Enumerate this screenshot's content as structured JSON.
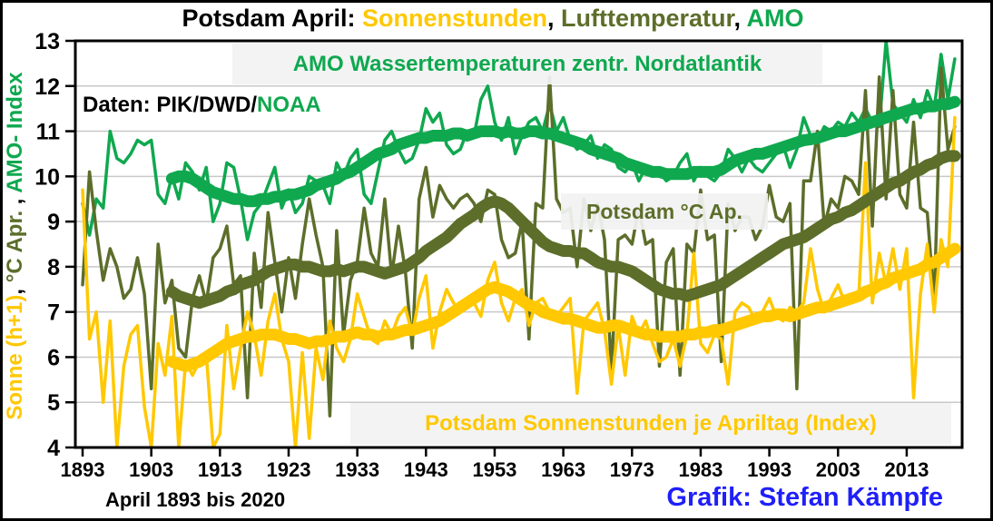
{
  "title": {
    "prefix": "Potsdam April: ",
    "sun": "Sonnenstunden",
    "sep1": ", ",
    "temp": "Lufttemperatur",
    "sep2": ", ",
    "amo": "AMO"
  },
  "colors": {
    "sun": "#FFC800",
    "temp": "#5C6E2A",
    "amo": "#0FA84F",
    "blue": "#1F1FFA",
    "grid": "#C8C8C8",
    "box_bg": "#F2F2F2",
    "axis": "#000000"
  },
  "annotations": {
    "amo_box": "AMO Wassertemperaturen  zentr. Nordatlantik",
    "daten_prefix": "Daten: PIK/DWD/",
    "daten_noaa": "NOAA",
    "temp_box": "Potsdam °C Ap.",
    "sun_box": "Potsdam Sonnenstunden je Apriltag (Index)"
  },
  "y_axis_label": {
    "sun_part": "Sonne (h+1)",
    "sep1": ", ",
    "temp_part": "°C Apr.",
    "sep2": " , ",
    "amo_part": "AMO- Index"
  },
  "footer": {
    "left": "April 1893 bis 2020",
    "right": "Grafik: Stefan Kämpfe"
  },
  "chart_data": {
    "type": "line",
    "title": "Potsdam April: Sonnenstunden, Lufttemperatur, AMO",
    "x_label": "April 1893 bis 2020",
    "x_start": 1893,
    "x_end": 2020,
    "ylim": [
      4,
      13
    ],
    "y_ticks": [
      4,
      5,
      6,
      7,
      8,
      9,
      10,
      11,
      12,
      13
    ],
    "x_ticks": [
      1893,
      1903,
      1913,
      1923,
      1933,
      1943,
      1953,
      1963,
      1973,
      1983,
      1993,
      2003,
      2013
    ],
    "grid": "horizontal",
    "legend_position": "labels-inside-plot",
    "series": [
      {
        "id": "amo_annual",
        "name": "AMO Wassertemperaturen zentr. Nordatlantik (Index, jährlich)",
        "color": "#0FA84F",
        "stroke_width": 3.5,
        "start_year": 1893,
        "values": [
          9.4,
          8.7,
          9.5,
          9.3,
          11.0,
          10.4,
          10.3,
          10.5,
          10.8,
          10.7,
          10.8,
          9.6,
          9.4,
          10.0,
          9.5,
          10.3,
          10.1,
          9.7,
          10.2,
          9.0,
          9.4,
          10.3,
          10.2,
          9.5,
          8.6,
          9.2,
          9.4,
          9.8,
          10.2,
          9.3,
          9.7,
          9.2,
          9.4,
          10.0,
          9.9,
          9.8,
          9.4,
          10.3,
          10.0,
          10.4,
          10.6,
          9.6,
          9.4,
          10.1,
          10.8,
          11.0,
          10.6,
          10.3,
          10.4,
          10.8,
          11.5,
          11.2,
          11.4,
          10.7,
          10.5,
          10.6,
          11.0,
          10.9,
          11.7,
          12.0,
          11.2,
          10.8,
          11.3,
          10.5,
          10.9,
          11.2,
          11.3,
          11.0,
          11.6,
          11.0,
          11.3,
          10.8,
          10.6,
          10.7,
          10.9,
          10.4,
          10.7,
          10.6,
          10.2,
          10.1,
          10.3,
          9.9,
          10.2,
          10.0,
          10.1,
          9.9,
          10.0,
          10.3,
          10.5,
          9.9,
          10.2,
          10.0,
          9.9,
          10.1,
          10.6,
          10.4,
          10.1,
          10.4,
          10.2,
          10.1,
          10.3,
          10.5,
          10.7,
          10.2,
          10.6,
          11.3,
          10.9,
          10.8,
          11.1,
          11.0,
          11.2,
          11.1,
          11.4,
          11.2,
          11.5,
          11.2,
          11.1,
          13.0,
          11.6,
          11.4,
          11.2,
          11.7,
          11.3,
          11.9,
          11.5,
          12.7,
          11.7,
          12.6
        ]
      },
      {
        "id": "temp_annual",
        "name": "Lufttemperatur Potsdam April °C (jährlich)",
        "color": "#5C6E2A",
        "stroke_width": 3.5,
        "start_year": 1893,
        "values": [
          7.6,
          10.1,
          8.8,
          7.7,
          8.4,
          8.0,
          7.3,
          7.5,
          8.2,
          7.4,
          5.3,
          8.5,
          7.2,
          7.7,
          6.2,
          6.0,
          7.3,
          7.8,
          7.2,
          8.2,
          8.4,
          8.9,
          7.6,
          7.8,
          5.1,
          8.3,
          7.1,
          9.2,
          8.1,
          7.0,
          8.2,
          7.3,
          8.5,
          9.5,
          8.7,
          8.0,
          4.7,
          8.8,
          6.5,
          7.7,
          8.1,
          9.3,
          8.3,
          8.0,
          9.5,
          7.8,
          8.9,
          7.9,
          6.2,
          9.5,
          10.2,
          9.1,
          9.8,
          9.5,
          9.3,
          9.5,
          9.6,
          9.4,
          9.0,
          9.7,
          9.6,
          8.6,
          8.2,
          8.3,
          9.0,
          6.4,
          9.4,
          9.3,
          12.2,
          9.5,
          9.2,
          9.3,
          8.0,
          9.5,
          8.8,
          9.4,
          8.6,
          5.7,
          8.6,
          8.7,
          8.5,
          9.3,
          8.5,
          8.6,
          5.8,
          8.1,
          8.4,
          5.6,
          8.5,
          8.3,
          9.7,
          8.6,
          8.7,
          5.9,
          9.4,
          8.8,
          9.1,
          9.1,
          8.6,
          8.9,
          9.8,
          9.1,
          9.0,
          9.4,
          5.3,
          9.9,
          9.9,
          11.0,
          8.9,
          9.5,
          9.3,
          10.0,
          9.9,
          9.6,
          11.9,
          8.9,
          12.2,
          9.5,
          11.9,
          9.6,
          9.3,
          11.2,
          9.3,
          9.2,
          7.2,
          12.4,
          10.6,
          11.1
        ]
      },
      {
        "id": "sun_annual",
        "name": "Potsdam Sonnenstunden je Apriltag, Index h+1 (jährlich)",
        "color": "#FFC800",
        "stroke_width": 3.5,
        "start_year": 1893,
        "values": [
          9.7,
          6.4,
          7.0,
          5.0,
          6.8,
          4.0,
          5.8,
          6.5,
          6.7,
          4.9,
          4.0,
          6.3,
          5.6,
          6.9,
          4.0,
          5.9,
          5.6,
          5.9,
          6.1,
          4.0,
          4.3,
          6.7,
          5.3,
          6.2,
          7.0,
          6.5,
          5.6,
          6.8,
          7.4,
          6.4,
          5.9,
          4.0,
          6.1,
          4.2,
          6.2,
          5.5,
          6.8,
          6.2,
          5.9,
          6.4,
          7.4,
          6.9,
          6.4,
          6.3,
          6.8,
          6.5,
          6.9,
          7.1,
          6.5,
          7.3,
          7.8,
          6.2,
          7.0,
          7.5,
          7.2,
          7.0,
          7.3,
          7.2,
          6.9,
          7.7,
          8.1,
          7.2,
          6.8,
          7.3,
          7.5,
          6.7,
          7.2,
          7.3,
          7.0,
          6.9,
          7.1,
          7.3,
          5.2,
          6.8,
          7.0,
          7.2,
          6.6,
          5.4,
          6.7,
          5.6,
          6.9,
          6.5,
          6.8,
          6.3,
          5.9,
          6.0,
          6.4,
          5.8,
          6.5,
          8.3,
          6.3,
          6.1,
          6.5,
          6.4,
          5.4,
          7.0,
          7.2,
          7.1,
          6.8,
          7.0,
          7.3,
          6.9,
          6.8,
          7.1,
          7.0,
          7.2,
          8.4,
          7.5,
          7.0,
          7.3,
          7.6,
          7.2,
          7.4,
          7.3,
          10.3,
          7.2,
          8.3,
          7.6,
          8.4,
          7.5,
          8.4,
          5.1,
          7.4,
          8.5,
          7.0,
          8.6,
          8.0,
          11.3
        ]
      },
      {
        "id": "amo_smooth",
        "name": "AMO Index (geglättet)",
        "color": "#0FA84F",
        "stroke_width": 13,
        "start_year": 1906,
        "values": [
          9.95,
          10.0,
          10.0,
          9.95,
          9.85,
          9.75,
          9.65,
          9.6,
          9.55,
          9.5,
          9.5,
          9.45,
          9.45,
          9.5,
          9.5,
          9.55,
          9.55,
          9.6,
          9.6,
          9.65,
          9.7,
          9.8,
          9.85,
          9.9,
          9.95,
          10.05,
          10.1,
          10.2,
          10.3,
          10.4,
          10.5,
          10.55,
          10.6,
          10.7,
          10.75,
          10.8,
          10.85,
          10.85,
          10.9,
          10.9,
          10.9,
          10.95,
          10.95,
          10.9,
          10.95,
          11.0,
          11.0,
          11.0,
          10.95,
          11.0,
          10.95,
          10.95,
          11.0,
          11.0,
          10.95,
          10.95,
          10.9,
          10.85,
          10.8,
          10.75,
          10.7,
          10.6,
          10.55,
          10.5,
          10.45,
          10.4,
          10.3,
          10.25,
          10.2,
          10.15,
          10.1,
          10.1,
          10.05,
          10.05,
          10.05,
          10.05,
          10.1,
          10.1,
          10.1,
          10.1,
          10.15,
          10.25,
          10.35,
          10.4,
          10.45,
          10.5,
          10.5,
          10.55,
          10.6,
          10.65,
          10.7,
          10.75,
          10.8,
          10.82,
          10.85,
          10.9,
          10.95,
          11.0,
          11.0,
          11.05,
          11.1,
          11.15,
          11.2,
          11.25,
          11.3,
          11.35,
          11.4,
          11.45,
          11.5,
          11.5,
          11.55,
          11.55,
          11.6,
          11.6,
          11.65
        ]
      },
      {
        "id": "temp_smooth",
        "name": "Lufttemperatur °C (geglättet)",
        "color": "#5C6E2A",
        "stroke_width": 13,
        "start_year": 1906,
        "values": [
          7.45,
          7.35,
          7.3,
          7.25,
          7.2,
          7.25,
          7.3,
          7.35,
          7.45,
          7.5,
          7.6,
          7.65,
          7.7,
          7.8,
          7.9,
          7.95,
          8.0,
          8.05,
          8.05,
          8.0,
          8.0,
          7.95,
          7.9,
          7.9,
          7.95,
          7.9,
          7.95,
          8.0,
          8.0,
          7.95,
          7.9,
          7.85,
          7.9,
          7.95,
          8.0,
          8.1,
          8.2,
          8.35,
          8.45,
          8.55,
          8.65,
          8.8,
          8.95,
          9.05,
          9.15,
          9.3,
          9.4,
          9.45,
          9.4,
          9.3,
          9.15,
          9.0,
          8.85,
          8.7,
          8.55,
          8.45,
          8.4,
          8.35,
          8.35,
          8.3,
          8.3,
          8.2,
          8.1,
          8.05,
          8.0,
          8.0,
          7.95,
          7.9,
          7.8,
          7.7,
          7.6,
          7.5,
          7.45,
          7.4,
          7.4,
          7.35,
          7.4,
          7.45,
          7.5,
          7.55,
          7.6,
          7.7,
          7.8,
          7.9,
          8.0,
          8.1,
          8.2,
          8.3,
          8.4,
          8.5,
          8.55,
          8.6,
          8.65,
          8.75,
          8.85,
          8.95,
          9.05,
          9.1,
          9.2,
          9.25,
          9.35,
          9.45,
          9.55,
          9.65,
          9.75,
          9.85,
          9.9,
          10.0,
          10.1,
          10.15,
          10.25,
          10.3,
          10.4,
          10.45,
          10.45
        ]
      },
      {
        "id": "sun_smooth",
        "name": "Sonnenstunden Index (geglättet)",
        "color": "#FFC800",
        "stroke_width": 13,
        "start_year": 1906,
        "values": [
          5.9,
          5.85,
          5.8,
          5.85,
          5.9,
          6.0,
          6.1,
          6.2,
          6.3,
          6.35,
          6.4,
          6.45,
          6.45,
          6.5,
          6.5,
          6.5,
          6.45,
          6.4,
          6.4,
          6.35,
          6.3,
          6.35,
          6.35,
          6.4,
          6.45,
          6.45,
          6.5,
          6.55,
          6.5,
          6.5,
          6.45,
          6.5,
          6.5,
          6.55,
          6.6,
          6.6,
          6.65,
          6.7,
          6.75,
          6.8,
          6.9,
          7.0,
          7.1,
          7.2,
          7.3,
          7.4,
          7.5,
          7.55,
          7.5,
          7.45,
          7.35,
          7.25,
          7.15,
          7.1,
          7.0,
          6.95,
          6.9,
          6.85,
          6.85,
          6.8,
          6.75,
          6.7,
          6.65,
          6.65,
          6.7,
          6.7,
          6.65,
          6.6,
          6.55,
          6.5,
          6.5,
          6.45,
          6.45,
          6.45,
          6.45,
          6.5,
          6.5,
          6.55,
          6.55,
          6.6,
          6.6,
          6.65,
          6.7,
          6.75,
          6.8,
          6.85,
          6.9,
          6.9,
          6.95,
          6.95,
          6.9,
          6.95,
          7.0,
          7.05,
          7.1,
          7.1,
          7.15,
          7.2,
          7.25,
          7.3,
          7.35,
          7.45,
          7.5,
          7.6,
          7.65,
          7.75,
          7.8,
          7.85,
          7.9,
          7.95,
          8.05,
          8.1,
          8.2,
          8.3,
          8.4
        ]
      }
    ]
  }
}
